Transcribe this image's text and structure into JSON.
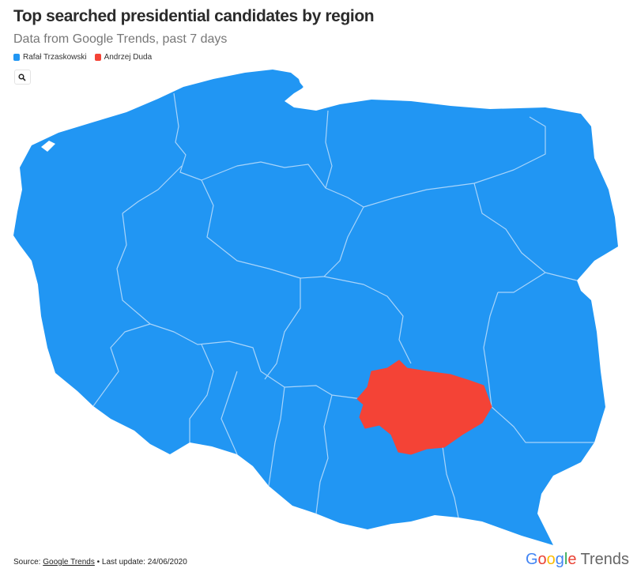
{
  "header": {
    "title": "Top searched presidential candidates by region",
    "subtitle": "Data from Google Trends, past 7 days"
  },
  "legend": [
    {
      "label": "Rafał Trzaskowski",
      "color": "#2196f3"
    },
    {
      "label": "Andrzej Duda",
      "color": "#f44336"
    }
  ],
  "search": {
    "icon": "search-icon"
  },
  "map": {
    "country": "Poland",
    "border_color": "#a8d4fa",
    "regions": [
      {
        "name": "Zachodniopomorskie",
        "winner": "Rafał Trzaskowski"
      },
      {
        "name": "Pomorskie",
        "winner": "Rafał Trzaskowski"
      },
      {
        "name": "Warmińsko-Mazurskie",
        "winner": "Rafał Trzaskowski"
      },
      {
        "name": "Podlaskie",
        "winner": "Rafał Trzaskowski"
      },
      {
        "name": "Kujawsko-Pomorskie",
        "winner": "Rafał Trzaskowski"
      },
      {
        "name": "Lubuskie",
        "winner": "Rafał Trzaskowski"
      },
      {
        "name": "Wielkopolskie",
        "winner": "Rafał Trzaskowski"
      },
      {
        "name": "Mazowieckie",
        "winner": "Rafał Trzaskowski"
      },
      {
        "name": "Łódzkie",
        "winner": "Rafał Trzaskowski"
      },
      {
        "name": "Lubelskie",
        "winner": "Rafał Trzaskowski"
      },
      {
        "name": "Dolnośląskie",
        "winner": "Rafał Trzaskowski"
      },
      {
        "name": "Opolskie",
        "winner": "Rafał Trzaskowski"
      },
      {
        "name": "Śląskie",
        "winner": "Rafał Trzaskowski"
      },
      {
        "name": "Świętokrzyskie",
        "winner": "Andrzej Duda"
      },
      {
        "name": "Małopolskie",
        "winner": "Rafał Trzaskowski"
      },
      {
        "name": "Podkarpackie",
        "winner": "Rafał Trzaskowski"
      }
    ]
  },
  "footer": {
    "source_prefix": "Source: ",
    "source_link": "Google Trends",
    "update_text": " • Last update: 24/06/2020"
  },
  "brand": {
    "google": "Google",
    "trends": "Trends"
  }
}
